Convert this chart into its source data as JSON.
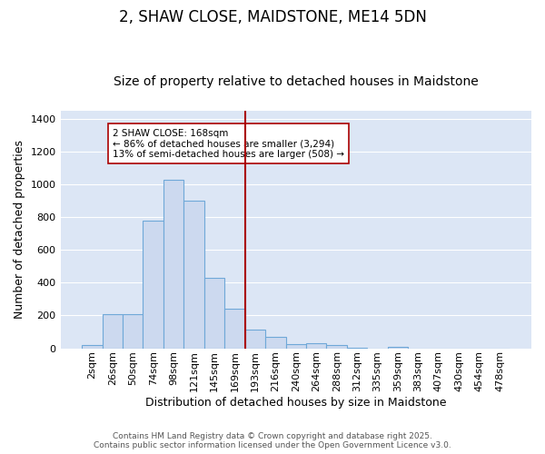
{
  "title": "2, SHAW CLOSE, MAIDSTONE, ME14 5DN",
  "subtitle": "Size of property relative to detached houses in Maidstone",
  "xlabel": "Distribution of detached houses by size in Maidstone",
  "ylabel": "Number of detached properties",
  "categories": [
    "2sqm",
    "26sqm",
    "50sqm",
    "74sqm",
    "98sqm",
    "121sqm",
    "145sqm",
    "169sqm",
    "193sqm",
    "216sqm",
    "240sqm",
    "264sqm",
    "288sqm",
    "312sqm",
    "335sqm",
    "359sqm",
    "383sqm",
    "407sqm",
    "430sqm",
    "454sqm",
    "478sqm"
  ],
  "values": [
    20,
    210,
    210,
    780,
    1030,
    900,
    430,
    240,
    115,
    70,
    25,
    30,
    20,
    5,
    0,
    10,
    0,
    0,
    0,
    0,
    0
  ],
  "bar_color": "#ccd9ef",
  "bar_edge_color": "#6fa8d8",
  "vline_x": 7.5,
  "vline_color": "#aa0000",
  "annotation_text": "2 SHAW CLOSE: 168sqm\n← 86% of detached houses are smaller (3,294)\n13% of semi-detached houses are larger (508) →",
  "annotation_box_color": "white",
  "annotation_box_edge": "#aa0000",
  "ylim": [
    0,
    1450
  ],
  "yticks": [
    0,
    200,
    400,
    600,
    800,
    1000,
    1200,
    1400
  ],
  "fig_bg_color": "#ffffff",
  "plot_bg_color": "#dce6f5",
  "grid_color": "#ffffff",
  "footer_line1": "Contains HM Land Registry data © Crown copyright and database right 2025.",
  "footer_line2": "Contains public sector information licensed under the Open Government Licence v3.0.",
  "title_fontsize": 12,
  "subtitle_fontsize": 10,
  "tick_fontsize": 8,
  "label_fontsize": 9,
  "annotation_fontsize": 7.5
}
